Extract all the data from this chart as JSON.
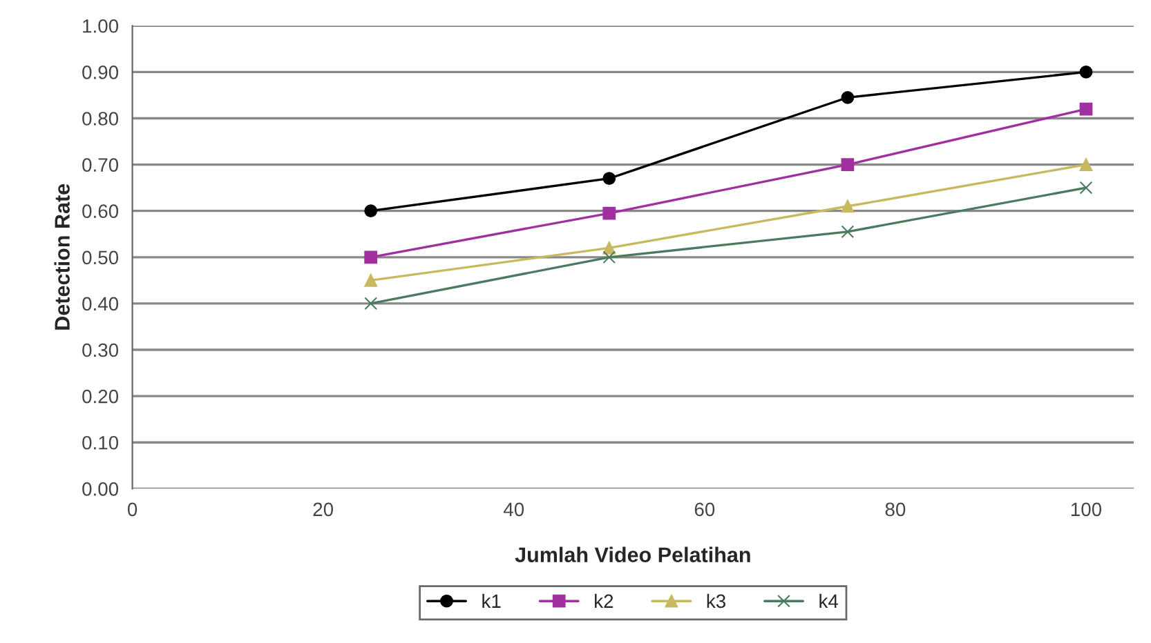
{
  "chart_data": {
    "type": "line",
    "xlabel": "Jumlah Video Pelatihan",
    "ylabel": "Detection Rate",
    "x": [
      25,
      50,
      75,
      100
    ],
    "series": [
      {
        "name": "k1",
        "color": "#000000",
        "marker": "circle",
        "values": [
          0.6,
          0.67,
          0.845,
          0.9
        ]
      },
      {
        "name": "k2",
        "color": "#a030a0",
        "marker": "square",
        "values": [
          0.5,
          0.595,
          0.7,
          0.82
        ]
      },
      {
        "name": "k3",
        "color": "#c8b860",
        "marker": "triangle",
        "values": [
          0.45,
          0.52,
          0.61,
          0.7
        ]
      },
      {
        "name": "k4",
        "color": "#4a7a60",
        "marker": "cross",
        "values": [
          0.4,
          0.5,
          0.555,
          0.65
        ]
      }
    ],
    "xlim": [
      0,
      105
    ],
    "xticks": [
      0,
      20,
      40,
      60,
      80,
      100
    ],
    "ylim": [
      0,
      1.0
    ],
    "yticks": [
      {
        "value": 0,
        "label": "0.00"
      },
      {
        "value": 0.1,
        "label": "0.10"
      },
      {
        "value": 0.2,
        "label": "0.20"
      },
      {
        "value": 0.3,
        "label": "0.30"
      },
      {
        "value": 0.4,
        "label": "0.40"
      },
      {
        "value": 0.5,
        "label": "0.50"
      },
      {
        "value": 0.6,
        "label": "0.60"
      },
      {
        "value": 0.7,
        "label": "0.70"
      },
      {
        "value": 0.8,
        "label": "0.80"
      },
      {
        "value": 0.9,
        "label": "0.90"
      },
      {
        "value": 1.0,
        "label": "1.00"
      }
    ],
    "grid": "y",
    "legend": "bottom",
    "line_style": "solid"
  }
}
